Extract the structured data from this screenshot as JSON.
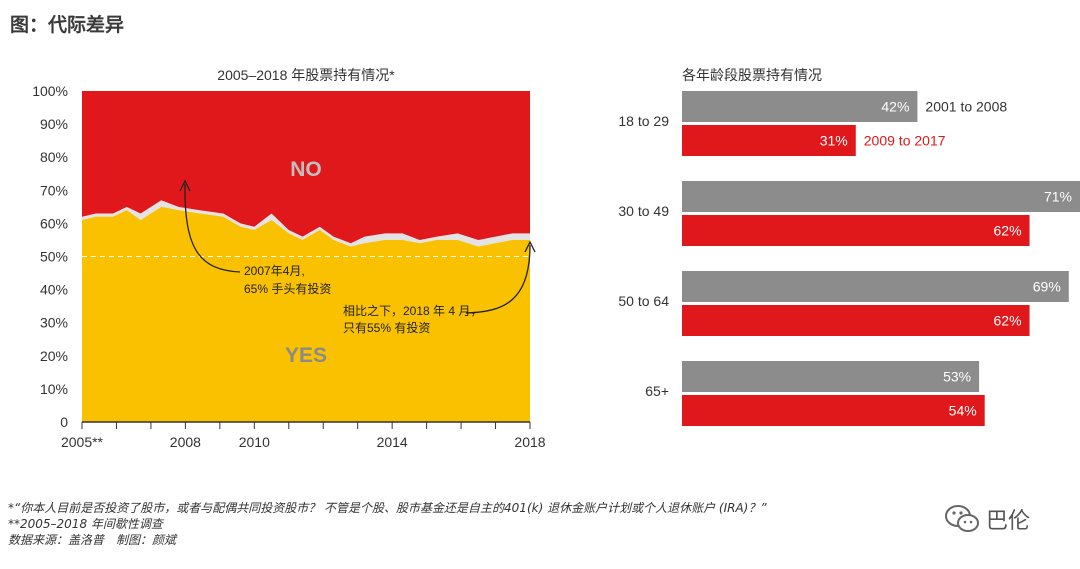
{
  "page": {
    "title": "图：代际差异",
    "footnotes": [
      "*“你本人目前是否投资了股市，或者与配偶共同投资股市？ 不管是个股、股市基金还是自主的401(k) 退休金账户计划或个人退休账户 (IRA)？”",
      "**2005–2018 年间歇性调查",
      "数据来源：盖洛普　制图：颜斌"
    ],
    "watermark": "巴伦"
  },
  "colors": {
    "no": "#e0181b",
    "yes": "#f9c100",
    "gap": "#e3e3e3",
    "gray_bar": "#8c8c8c",
    "red_bar": "#e0181b",
    "red_text": "#e0181b"
  },
  "chart_data": [
    {
      "type": "area",
      "title": "2005–2018 年股票持有情况*",
      "xlim": [
        2005,
        2018
      ],
      "ylim": [
        0,
        100
      ],
      "x_ticks": [
        "2005**",
        "2008",
        "2010",
        "2014",
        "2018"
      ],
      "y_ticks": [
        "0",
        "10%",
        "20%",
        "30%",
        "40%",
        "50%",
        "60%",
        "70%",
        "80%",
        "90%",
        "100%"
      ],
      "reference_line": 50,
      "series": [
        {
          "name": "YES",
          "x": [
            2005.0,
            2005.4,
            2005.9,
            2006.3,
            2006.7,
            2007.3,
            2007.8,
            2008.4,
            2009.1,
            2009.6,
            2010.0,
            2010.5,
            2011.0,
            2011.4,
            2011.9,
            2012.3,
            2012.8,
            2013.2,
            2013.8,
            2014.3,
            2014.8,
            2015.3,
            2015.9,
            2016.5,
            2017.0,
            2017.5,
            2018.0
          ],
          "values": [
            61,
            62,
            62,
            64,
            61,
            65,
            64,
            63,
            62,
            59,
            58,
            61,
            57,
            55,
            58,
            55,
            53,
            54,
            55,
            55,
            54,
            55,
            55,
            53,
            54,
            55,
            55
          ]
        },
        {
          "name": "NO",
          "x": [
            2005.0,
            2005.4,
            2005.9,
            2006.3,
            2006.7,
            2007.3,
            2007.8,
            2008.4,
            2009.1,
            2009.6,
            2010.0,
            2010.5,
            2011.0,
            2011.4,
            2011.9,
            2012.3,
            2012.8,
            2013.2,
            2013.8,
            2014.3,
            2014.8,
            2015.3,
            2015.9,
            2016.5,
            2017.0,
            2017.5,
            2018.0
          ],
          "values": [
            38,
            37,
            37,
            35,
            37,
            33,
            35,
            36,
            37,
            40,
            41,
            37,
            42,
            44,
            41,
            44,
            46,
            44,
            43,
            43,
            45,
            44,
            43,
            45,
            44,
            43,
            43
          ]
        }
      ],
      "labels": {
        "no": "NO",
        "yes": "YES"
      },
      "annotations": [
        {
          "lines": [
            "2007年4月,",
            "65% 手头有投资"
          ]
        },
        {
          "lines": [
            "相比之下，2018 年 4 月，",
            "只有55% 有投资"
          ]
        }
      ]
    },
    {
      "type": "bar",
      "orientation": "horizontal",
      "title": "各年龄段股票持有情况",
      "categories": [
        "18 to 29",
        "30 to 49",
        "50 to 64",
        "65+"
      ],
      "xlim": [
        0,
        71
      ],
      "series": [
        {
          "name": "2001 to 2008",
          "values": [
            42,
            71,
            69,
            53
          ],
          "labels": [
            "42%",
            "71%",
            "69%",
            "53%"
          ]
        },
        {
          "name": "2009 to 2017",
          "values": [
            31,
            62,
            62,
            54
          ],
          "labels": [
            "31%",
            "62%",
            "62%",
            "54%"
          ]
        }
      ]
    }
  ]
}
